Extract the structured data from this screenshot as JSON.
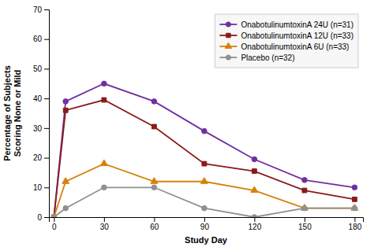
{
  "chart_data": {
    "type": "line",
    "x": [
      0,
      7,
      30,
      60,
      90,
      120,
      150,
      180
    ],
    "series": [
      {
        "name": "OnabotulinumtoxinA 24U (n=31)",
        "color": "#7030A0",
        "marker": "circle",
        "values": [
          0,
          39,
          45,
          39,
          29,
          19.5,
          12.5,
          10
        ]
      },
      {
        "name": "OnabotulinumtoxinA 12U (n=33)",
        "color": "#8B1A1A",
        "marker": "square",
        "values": [
          0,
          36,
          39.5,
          30.5,
          18,
          15.5,
          9,
          6
        ]
      },
      {
        "name": "OnabotulinumtoxinA 6U (n=33)",
        "color": "#D4820A",
        "marker": "triangle",
        "values": [
          0,
          12,
          18,
          12,
          12,
          9,
          3,
          3
        ]
      },
      {
        "name": "Placebo (n=32)",
        "color": "#909090",
        "marker": "circle",
        "values": [
          0,
          3,
          10,
          10,
          3,
          0,
          3,
          3
        ]
      }
    ],
    "xlabel": "Study Day",
    "ylabel": "Percentage of Subjects\nScoring None or Mild",
    "xlim": [
      -3,
      185
    ],
    "ylim": [
      0,
      70
    ],
    "xticks": [
      0,
      30,
      60,
      90,
      120,
      150,
      180
    ],
    "yticks": [
      0,
      10,
      20,
      30,
      40,
      50,
      60,
      70
    ],
    "grid": false,
    "legend": "upper right"
  }
}
